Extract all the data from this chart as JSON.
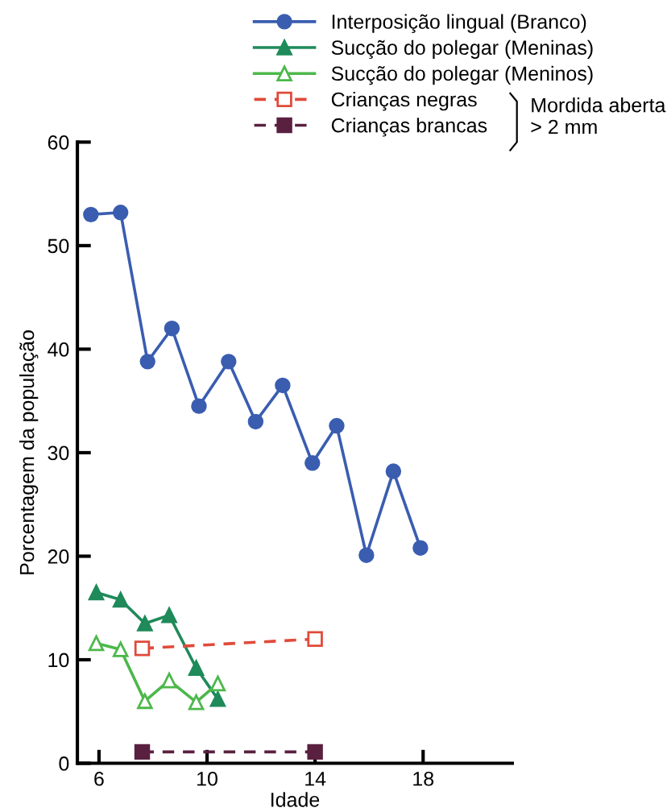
{
  "chart_data": {
    "type": "line",
    "xlabel": "Idade",
    "ylabel": "Porcentagem da população",
    "xlim": [
      5.2,
      21.3
    ],
    "ylim": [
      0,
      60
    ],
    "xticks": [
      6,
      10,
      14,
      18
    ],
    "yticks": [
      0,
      10,
      20,
      30,
      40,
      50,
      60
    ],
    "grid": false,
    "legend": "top right",
    "annotations": [
      "Mordida aberta\n> 2 mm"
    ],
    "series": [
      {
        "name": "Interposição lingual (Branco)",
        "color": "#3a5db0",
        "marker": "circle",
        "line_style": "solid",
        "x": [
          5.7,
          6.8,
          7.8,
          8.7,
          9.7,
          10.8,
          11.8,
          12.8,
          13.9,
          14.8,
          15.9,
          16.9,
          17.9
        ],
        "values": [
          53,
          53.2,
          38.8,
          42,
          34.5,
          38.8,
          33,
          36.5,
          29,
          32.6,
          20.1,
          28.2,
          20.8
        ]
      },
      {
        "name": "Sucção do polegar (Meninas)",
        "color": "#1f8a5a",
        "marker": "triangle",
        "line_style": "solid",
        "x": [
          5.9,
          6.8,
          7.7,
          8.6,
          9.6,
          10.4
        ],
        "values": [
          16.5,
          15.8,
          13.5,
          14.3,
          9.2,
          6.2
        ]
      },
      {
        "name": "Sucção do polegar (Meninos)",
        "color": "#4cb84a",
        "marker": "triangle_open",
        "line_style": "solid",
        "x": [
          5.9,
          6.8,
          7.7,
          8.6,
          9.6,
          10.4
        ],
        "values": [
          11.6,
          11,
          6,
          8,
          5.9,
          7.7
        ]
      },
      {
        "name": "Crianças negras",
        "color": "#e04a3a",
        "marker": "square_open",
        "line_style": "dashed",
        "x": [
          7.6,
          14
        ],
        "values": [
          11.1,
          12
        ]
      },
      {
        "name": "Crianças brancas",
        "color": "#5a2040",
        "marker": "square",
        "line_style": "dashed",
        "x": [
          7.6,
          14
        ],
        "values": [
          1.1,
          1.1
        ]
      }
    ]
  }
}
